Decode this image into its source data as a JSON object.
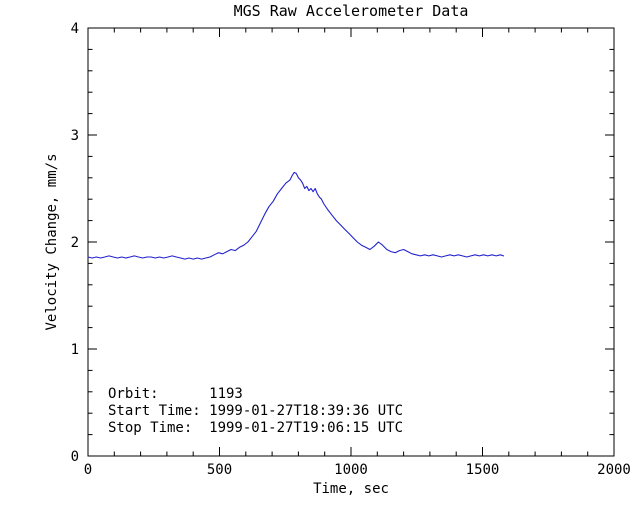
{
  "chart_data": {
    "type": "line",
    "title": "MGS Raw Accelerometer Data",
    "xlabel": "Time, sec",
    "ylabel": "Velocity Change, mm/s",
    "xlim": [
      0,
      2000
    ],
    "ylim": [
      0,
      4
    ],
    "x_ticks": [
      0,
      500,
      1000,
      1500,
      2000
    ],
    "y_ticks": [
      0,
      1,
      2,
      3,
      4
    ],
    "x_minor_step": 100,
    "y_minor_step": 0.2,
    "grid": false,
    "legend": "none",
    "line_color": "#2222cc",
    "axis_color": "#000000",
    "background_color": "#ffffff",
    "annotations": [
      "Orbit:      1193",
      "Start Time: 1999-01-27T18:39:36 UTC",
      "Stop Time:  1999-01-27T19:06:15 UTC"
    ],
    "orbit_number": "1193",
    "start_time": "1999-01-27T18:39:36 UTC",
    "stop_time": "1999-01-27T19:06:15 UTC",
    "series": [
      {
        "name": "velocity-change",
        "points": [
          [
            0,
            1.86
          ],
          [
            16,
            1.85
          ],
          [
            32,
            1.86
          ],
          [
            48,
            1.85
          ],
          [
            64,
            1.86
          ],
          [
            80,
            1.87
          ],
          [
            96,
            1.86
          ],
          [
            112,
            1.85
          ],
          [
            128,
            1.86
          ],
          [
            144,
            1.85
          ],
          [
            160,
            1.86
          ],
          [
            176,
            1.87
          ],
          [
            192,
            1.86
          ],
          [
            208,
            1.85
          ],
          [
            224,
            1.86
          ],
          [
            240,
            1.86
          ],
          [
            256,
            1.85
          ],
          [
            272,
            1.86
          ],
          [
            288,
            1.85
          ],
          [
            304,
            1.86
          ],
          [
            320,
            1.87
          ],
          [
            336,
            1.86
          ],
          [
            352,
            1.85
          ],
          [
            368,
            1.84
          ],
          [
            384,
            1.85
          ],
          [
            400,
            1.84
          ],
          [
            416,
            1.85
          ],
          [
            432,
            1.84
          ],
          [
            448,
            1.85
          ],
          [
            464,
            1.86
          ],
          [
            480,
            1.88
          ],
          [
            496,
            1.9
          ],
          [
            512,
            1.89
          ],
          [
            528,
            1.91
          ],
          [
            544,
            1.93
          ],
          [
            560,
            1.92
          ],
          [
            576,
            1.95
          ],
          [
            592,
            1.97
          ],
          [
            608,
            2.0
          ],
          [
            624,
            2.05
          ],
          [
            640,
            2.1
          ],
          [
            656,
            2.18
          ],
          [
            672,
            2.26
          ],
          [
            688,
            2.33
          ],
          [
            704,
            2.38
          ],
          [
            720,
            2.45
          ],
          [
            736,
            2.5
          ],
          [
            752,
            2.55
          ],
          [
            768,
            2.58
          ],
          [
            776,
            2.62
          ],
          [
            784,
            2.65
          ],
          [
            792,
            2.64
          ],
          [
            800,
            2.6
          ],
          [
            808,
            2.58
          ],
          [
            816,
            2.55
          ],
          [
            824,
            2.5
          ],
          [
            832,
            2.52
          ],
          [
            840,
            2.48
          ],
          [
            848,
            2.5
          ],
          [
            856,
            2.47
          ],
          [
            864,
            2.5
          ],
          [
            872,
            2.45
          ],
          [
            880,
            2.42
          ],
          [
            888,
            2.4
          ],
          [
            896,
            2.36
          ],
          [
            912,
            2.3
          ],
          [
            928,
            2.25
          ],
          [
            944,
            2.2
          ],
          [
            960,
            2.16
          ],
          [
            976,
            2.12
          ],
          [
            992,
            2.08
          ],
          [
            1008,
            2.04
          ],
          [
            1024,
            2.0
          ],
          [
            1040,
            1.97
          ],
          [
            1056,
            1.95
          ],
          [
            1072,
            1.93
          ],
          [
            1088,
            1.96
          ],
          [
            1104,
            2.0
          ],
          [
            1120,
            1.97
          ],
          [
            1136,
            1.93
          ],
          [
            1152,
            1.91
          ],
          [
            1168,
            1.9
          ],
          [
            1184,
            1.92
          ],
          [
            1200,
            1.93
          ],
          [
            1216,
            1.91
          ],
          [
            1232,
            1.89
          ],
          [
            1248,
            1.88
          ],
          [
            1264,
            1.87
          ],
          [
            1280,
            1.88
          ],
          [
            1296,
            1.87
          ],
          [
            1312,
            1.88
          ],
          [
            1328,
            1.87
          ],
          [
            1344,
            1.86
          ],
          [
            1360,
            1.87
          ],
          [
            1376,
            1.88
          ],
          [
            1392,
            1.87
          ],
          [
            1408,
            1.88
          ],
          [
            1424,
            1.87
          ],
          [
            1440,
            1.86
          ],
          [
            1456,
            1.87
          ],
          [
            1472,
            1.88
          ],
          [
            1488,
            1.87
          ],
          [
            1504,
            1.88
          ],
          [
            1520,
            1.87
          ],
          [
            1536,
            1.88
          ],
          [
            1552,
            1.87
          ],
          [
            1568,
            1.88
          ],
          [
            1580,
            1.87
          ]
        ]
      }
    ]
  }
}
